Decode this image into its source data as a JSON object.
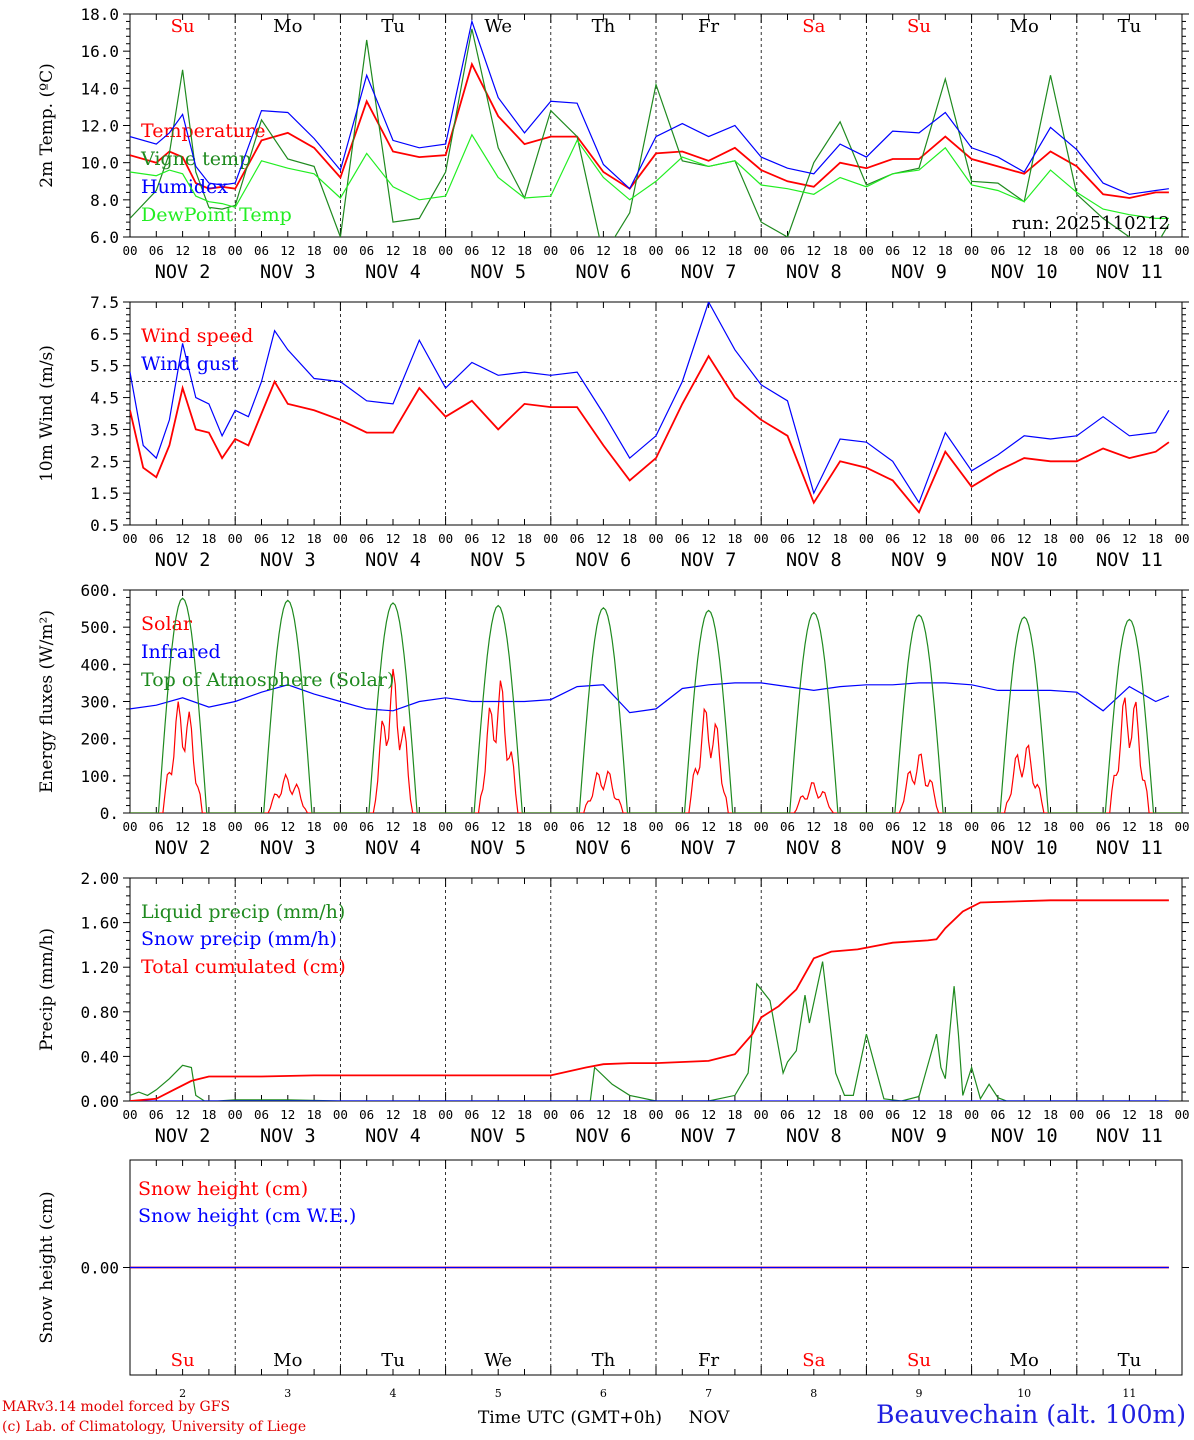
{
  "colors": {
    "red": "#ff0000",
    "green": "#1f8a1f",
    "blue": "#0000ff",
    "lightgreen": "#22ee22",
    "axis": "#000000",
    "weekend": "#ff0000"
  },
  "days": [
    "Su",
    "Mo",
    "Tu",
    "We",
    "Th",
    "Fr",
    "Sa",
    "Su",
    "Mo",
    "Tu"
  ],
  "weekend_days": [
    0,
    6,
    7
  ],
  "date_labels": [
    "NOV  2",
    "NOV  3",
    "NOV  4",
    "NOV  5",
    "NOV  6",
    "NOV  7",
    "NOV  8",
    "NOV  9",
    "NOV 10",
    "NOV 11"
  ],
  "hour_ticks": [
    "00",
    "06",
    "12",
    "18"
  ],
  "bottom_numbers": [
    "2",
    "3",
    "4",
    "5",
    "6",
    "7",
    "8",
    "9",
    "10",
    "11"
  ],
  "bottom": {
    "axis_title": "Time UTC (GMT+0h)",
    "month": "NOV",
    "credit1": "MARv3.14 model forced by GFS",
    "credit2": "(c) Lab. of Climatology, University of Liege",
    "station": "Beauvechain (alt. 100m)"
  },
  "chart_data": [
    {
      "type": "line",
      "ylabel": "2m Temp. (ºC)",
      "ylim": [
        6.0,
        18.0
      ],
      "yticks": [
        "6.0",
        "8.0",
        "10.0",
        "12.0",
        "14.0",
        "16.0",
        "18.0"
      ],
      "annotation": "run: 2025110212",
      "x_unit": "hours since NOV 2 00 UTC",
      "series": [
        {
          "name": "Temperature",
          "color": "red",
          "x": [
            0,
            6,
            9,
            12,
            15,
            18,
            21,
            24,
            30,
            36,
            42,
            48,
            54,
            60,
            66,
            72,
            78,
            84,
            90,
            96,
            102,
            108,
            114,
            120,
            126,
            132,
            138,
            144,
            150,
            156,
            162,
            168,
            174,
            180,
            186,
            192,
            198,
            204,
            210,
            216,
            222,
            228,
            234,
            237
          ],
          "values": [
            10.4,
            10.0,
            10.6,
            10.3,
            8.9,
            8.6,
            8.7,
            8.6,
            11.2,
            11.6,
            10.8,
            9.2,
            13.3,
            10.6,
            10.3,
            10.4,
            15.3,
            12.5,
            11.0,
            11.4,
            11.4,
            9.5,
            8.6,
            10.5,
            10.6,
            10.1,
            10.8,
            9.6,
            9.0,
            8.7,
            10.0,
            9.7,
            10.2,
            10.2,
            11.4,
            10.2,
            9.8,
            9.4,
            10.6,
            9.8,
            8.3,
            8.1,
            8.4,
            8.4
          ]
        },
        {
          "name": "Vigne temp",
          "color": "green",
          "x": [
            0,
            6,
            9,
            12,
            15,
            18,
            21,
            24,
            30,
            36,
            42,
            48,
            54,
            60,
            66,
            72,
            78,
            84,
            90,
            96,
            102,
            108,
            114,
            120,
            126,
            132,
            138,
            144,
            150,
            156,
            162,
            168,
            174,
            180,
            186,
            192,
            198,
            204,
            210,
            216,
            222,
            228,
            234,
            237
          ],
          "values": [
            7.0,
            8.5,
            10.5,
            15.0,
            9.5,
            7.6,
            7.5,
            7.7,
            12.3,
            10.2,
            9.8,
            6.0,
            16.6,
            6.8,
            7.0,
            9.5,
            17.2,
            10.8,
            8.1,
            12.8,
            11.4,
            5.0,
            7.3,
            14.2,
            10.1,
            9.8,
            10.1,
            6.8,
            6.0,
            10.0,
            12.2,
            8.8,
            9.4,
            9.7,
            14.5,
            9.0,
            8.9,
            7.9,
            14.7,
            8.3,
            7.0,
            6.0,
            5.5,
            6.7
          ]
        },
        {
          "name": "Humidex",
          "color": "blue",
          "x": [
            0,
            6,
            9,
            12,
            15,
            18,
            21,
            24,
            30,
            36,
            42,
            48,
            54,
            60,
            66,
            72,
            78,
            84,
            90,
            96,
            102,
            108,
            114,
            120,
            126,
            132,
            138,
            144,
            150,
            156,
            162,
            168,
            174,
            180,
            186,
            192,
            198,
            204,
            210,
            216,
            222,
            228,
            234,
            237
          ],
          "values": [
            11.4,
            11.0,
            11.6,
            12.6,
            9.8,
            8.9,
            8.8,
            8.9,
            12.8,
            12.7,
            11.3,
            9.6,
            14.7,
            11.2,
            10.8,
            11.0,
            17.6,
            13.5,
            11.6,
            13.3,
            13.2,
            9.9,
            8.6,
            11.4,
            12.1,
            11.4,
            12.0,
            10.3,
            9.7,
            9.4,
            11.0,
            10.3,
            11.7,
            11.6,
            12.7,
            10.8,
            10.3,
            9.5,
            11.9,
            10.7,
            8.9,
            8.3,
            8.5,
            8.6
          ]
        },
        {
          "name": "DewPoint Temp",
          "color": "lightgreen",
          "x": [
            0,
            6,
            9,
            12,
            15,
            18,
            21,
            24,
            30,
            36,
            42,
            48,
            54,
            60,
            66,
            72,
            78,
            84,
            90,
            96,
            102,
            108,
            114,
            120,
            126,
            132,
            138,
            144,
            150,
            156,
            162,
            168,
            174,
            180,
            186,
            192,
            198,
            204,
            210,
            216,
            222,
            228,
            234,
            237
          ],
          "values": [
            9.5,
            9.3,
            9.6,
            9.4,
            8.2,
            7.9,
            7.8,
            7.6,
            10.1,
            9.7,
            9.4,
            8.1,
            10.5,
            8.7,
            8.0,
            8.2,
            11.5,
            9.2,
            8.1,
            8.2,
            11.2,
            9.2,
            8.0,
            9.0,
            10.3,
            9.8,
            10.1,
            8.8,
            8.6,
            8.3,
            9.2,
            8.7,
            9.4,
            9.6,
            10.8,
            8.8,
            8.5,
            7.9,
            9.6,
            8.4,
            7.5,
            7.2,
            7.0,
            7.0
          ]
        }
      ]
    },
    {
      "type": "line",
      "ylabel": "10m Wind (m/s)",
      "ylim": [
        0.5,
        7.5
      ],
      "yticks": [
        "0.5",
        "1.5",
        "2.5",
        "3.5",
        "4.5",
        "5.5",
        "6.5",
        "7.5"
      ],
      "reference_line": 5.0,
      "x_unit": "hours since NOV 2 00 UTC",
      "series": [
        {
          "name": "Wind speed",
          "color": "red",
          "x": [
            0,
            3,
            6,
            9,
            12,
            15,
            18,
            21,
            24,
            27,
            30,
            33,
            36,
            42,
            48,
            54,
            60,
            66,
            72,
            78,
            84,
            90,
            96,
            102,
            108,
            114,
            120,
            126,
            132,
            138,
            144,
            150,
            156,
            162,
            168,
            174,
            180,
            186,
            192,
            198,
            204,
            210,
            216,
            222,
            228,
            234,
            237
          ],
          "values": [
            4.1,
            2.3,
            2.0,
            3.0,
            4.8,
            3.5,
            3.4,
            2.6,
            3.2,
            3.0,
            4.0,
            5.0,
            4.3,
            4.1,
            3.8,
            3.4,
            3.4,
            4.8,
            3.9,
            4.4,
            3.5,
            4.3,
            4.2,
            4.2,
            3.0,
            1.9,
            2.6,
            4.3,
            5.8,
            4.5,
            3.8,
            3.3,
            1.2,
            2.5,
            2.3,
            1.9,
            0.9,
            2.8,
            1.7,
            2.2,
            2.6,
            2.5,
            2.5,
            2.9,
            2.6,
            2.8,
            3.1
          ]
        },
        {
          "name": "Wind gust",
          "color": "blue",
          "x": [
            0,
            3,
            6,
            9,
            12,
            15,
            18,
            21,
            24,
            27,
            30,
            33,
            36,
            42,
            48,
            54,
            60,
            66,
            72,
            78,
            84,
            90,
            96,
            102,
            108,
            114,
            120,
            126,
            132,
            138,
            144,
            150,
            156,
            162,
            168,
            174,
            180,
            186,
            192,
            198,
            204,
            210,
            216,
            222,
            228,
            234,
            237
          ],
          "values": [
            5.3,
            3.0,
            2.6,
            3.8,
            6.2,
            4.5,
            4.3,
            3.3,
            4.1,
            3.9,
            5.0,
            6.6,
            6.0,
            5.1,
            5.0,
            4.4,
            4.3,
            6.3,
            4.8,
            5.6,
            5.2,
            5.3,
            5.2,
            5.3,
            4.0,
            2.6,
            3.3,
            5.0,
            7.5,
            6.0,
            4.9,
            4.4,
            1.5,
            3.2,
            3.1,
            2.5,
            1.2,
            3.4,
            2.2,
            2.7,
            3.3,
            3.2,
            3.3,
            3.9,
            3.3,
            3.4,
            4.1
          ]
        }
      ]
    },
    {
      "type": "line",
      "ylabel": "Energy fluxes (W/m²)",
      "ylim": [
        0,
        600
      ],
      "yticks": [
        "0.",
        "100.",
        "200.",
        "300.",
        "400.",
        "500.",
        "600."
      ],
      "x_unit": "hours since NOV 2 00 UTC",
      "series": [
        {
          "name": "Solar",
          "color": "red",
          "peaks": [
            320,
            105,
            390,
            370,
            125,
            300,
            85,
            165,
            195,
            345
          ]
        },
        {
          "name": "Infrared",
          "color": "blue",
          "x": [
            0,
            6,
            12,
            18,
            24,
            30,
            36,
            42,
            48,
            54,
            60,
            66,
            72,
            78,
            84,
            90,
            96,
            102,
            108,
            114,
            120,
            126,
            132,
            138,
            144,
            150,
            156,
            162,
            168,
            174,
            180,
            186,
            192,
            198,
            204,
            210,
            216,
            222,
            228,
            234,
            237
          ],
          "values": [
            280,
            290,
            310,
            285,
            300,
            325,
            345,
            320,
            300,
            280,
            275,
            300,
            310,
            300,
            300,
            300,
            305,
            340,
            345,
            270,
            280,
            335,
            345,
            350,
            350,
            340,
            330,
            340,
            345,
            345,
            350,
            350,
            345,
            330,
            330,
            330,
            325,
            275,
            340,
            300,
            315
          ]
        },
        {
          "name": "Top of Atmosphere (Solar)",
          "color": "green",
          "peaks": [
            578,
            572,
            565,
            558,
            552,
            545,
            539,
            533,
            527,
            521
          ]
        }
      ]
    },
    {
      "type": "line",
      "ylabel": "Precip (mm/h)",
      "ylim": [
        0,
        2.0
      ],
      "yticks": [
        "0.00",
        "0.40",
        "0.80",
        "1.20",
        "1.60",
        "2.00"
      ],
      "x_unit": "hours since NOV 2 00 UTC",
      "series": [
        {
          "name": "Liquid precip (mm/h)",
          "color": "green",
          "x": [
            0,
            2,
            4,
            6,
            9,
            12,
            14,
            15,
            17,
            20,
            24,
            36,
            48,
            96,
            105,
            106,
            110,
            114,
            120,
            126,
            132,
            138,
            141,
            143,
            146,
            149,
            150,
            152,
            154,
            155,
            158,
            161,
            163,
            165,
            168,
            172,
            176,
            180,
            184,
            185,
            186,
            188,
            189,
            190,
            192,
            194,
            196,
            198,
            200,
            204,
            210,
            220,
            237
          ],
          "values": [
            0.05,
            0.08,
            0.05,
            0.1,
            0.2,
            0.32,
            0.3,
            0.05,
            0,
            0,
            0.01,
            0.01,
            0,
            0,
            0,
            0.3,
            0.15,
            0.05,
            0,
            0,
            0,
            0.05,
            0.25,
            1.05,
            0.9,
            0.25,
            0.35,
            0.45,
            0.95,
            0.7,
            1.25,
            0.25,
            0.05,
            0.05,
            0.6,
            0.02,
            0,
            0.04,
            0.6,
            0.3,
            0.2,
            1.03,
            0.6,
            0.05,
            0.3,
            0.02,
            0.15,
            0.03,
            0,
            0,
            0,
            0,
            0
          ]
        },
        {
          "name": "Snow precip (mm/h)",
          "color": "blue",
          "x": [
            0,
            237
          ],
          "values": [
            0,
            0
          ]
        },
        {
          "name": "Total cumulated (cm)",
          "color": "red",
          "x": [
            0,
            6,
            10,
            14,
            18,
            30,
            42,
            60,
            96,
            104,
            108,
            114,
            120,
            132,
            138,
            142,
            144,
            148,
            152,
            156,
            160,
            166,
            174,
            182,
            184,
            186,
            190,
            194,
            210,
            237
          ],
          "values": [
            0,
            0.02,
            0.1,
            0.18,
            0.22,
            0.22,
            0.23,
            0.23,
            0.23,
            0.3,
            0.33,
            0.34,
            0.34,
            0.36,
            0.42,
            0.6,
            0.75,
            0.85,
            1.0,
            1.28,
            1.34,
            1.36,
            1.42,
            1.44,
            1.45,
            1.55,
            1.7,
            1.78,
            1.8,
            1.8
          ]
        }
      ]
    },
    {
      "type": "line",
      "ylabel": "Snow height (cm)",
      "ylim": [
        -1,
        1
      ],
      "yticks": [
        "0.00"
      ],
      "x_unit": "hours since NOV 2 00 UTC",
      "series": [
        {
          "name": "Snow height (cm)",
          "color": "red",
          "x": [
            0,
            237
          ],
          "values": [
            0,
            0
          ]
        },
        {
          "name": "Snow height (cm W.E.)",
          "color": "blue",
          "x": [
            0,
            237
          ],
          "values": [
            0,
            0
          ]
        }
      ]
    }
  ]
}
